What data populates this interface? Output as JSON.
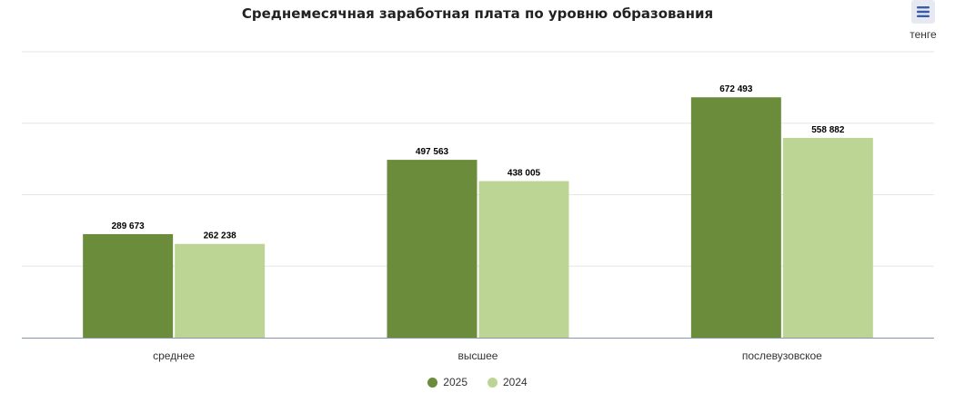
{
  "chart": {
    "title": "Среднемесячная заработная плата по уровню образования",
    "unit": "тенге",
    "menu_icon": "hamburger-menu-icon"
  },
  "chart_data": {
    "type": "bar",
    "title": "Среднемесячная заработная плата по уровню образования",
    "xlabel": "",
    "ylabel": "тенге",
    "categories": [
      "среднее",
      "высшее",
      "послевузовское"
    ],
    "series": [
      {
        "name": "2025",
        "values": [
          289673,
          497563,
          672493
        ],
        "value_labels": [
          "289 673",
          "497 563",
          "672 493"
        ],
        "color": "#6b8c3a"
      },
      {
        "name": "2024",
        "values": [
          262238,
          438005,
          558882
        ],
        "value_labels": [
          "262 238",
          "438 005",
          "558 882"
        ],
        "color": "#bcd595"
      }
    ],
    "ylim": [
      0,
      800000
    ],
    "gridlines": [
      0,
      200000,
      400000,
      600000,
      800000
    ],
    "grid": true,
    "legend": "bottom-center"
  }
}
